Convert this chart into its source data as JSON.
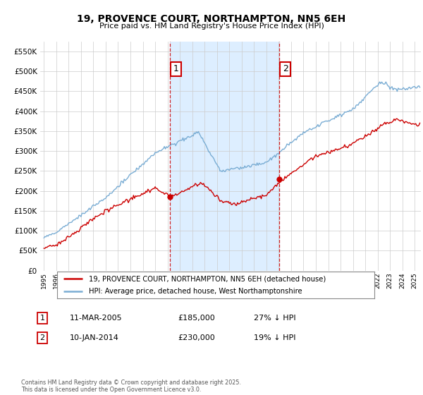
{
  "title": "19, PROVENCE COURT, NORTHAMPTON, NN5 6EH",
  "subtitle": "Price paid vs. HM Land Registry's House Price Index (HPI)",
  "legend_line1": "19, PROVENCE COURT, NORTHAMPTON, NN5 6EH (detached house)",
  "legend_line2": "HPI: Average price, detached house, West Northamptonshire",
  "annotation1_label": "1",
  "annotation1_date": "11-MAR-2005",
  "annotation1_price": 185000,
  "annotation1_hpi": "27% ↓ HPI",
  "annotation2_label": "2",
  "annotation2_date": "10-JAN-2014",
  "annotation2_price": 230000,
  "annotation2_hpi": "19% ↓ HPI",
  "sale1_x": 2005.19,
  "sale1_y": 185000,
  "sale2_x": 2014.03,
  "sale2_y": 230000,
  "price_color": "#cc0000",
  "hpi_color": "#7aadd4",
  "annotation_box_color": "#cc0000",
  "dashed_line_color": "#cc0000",
  "shade_color": "#ddeeff",
  "background_color": "#ffffff",
  "grid_color": "#cccccc",
  "footer": "Contains HM Land Registry data © Crown copyright and database right 2025.\nThis data is licensed under the Open Government Licence v3.0.",
  "ylim": [
    0,
    575000
  ],
  "yticks": [
    0,
    50000,
    100000,
    150000,
    200000,
    250000,
    300000,
    350000,
    400000,
    450000,
    500000,
    550000
  ],
  "xlim_start": 1994.7,
  "xlim_end": 2025.5
}
